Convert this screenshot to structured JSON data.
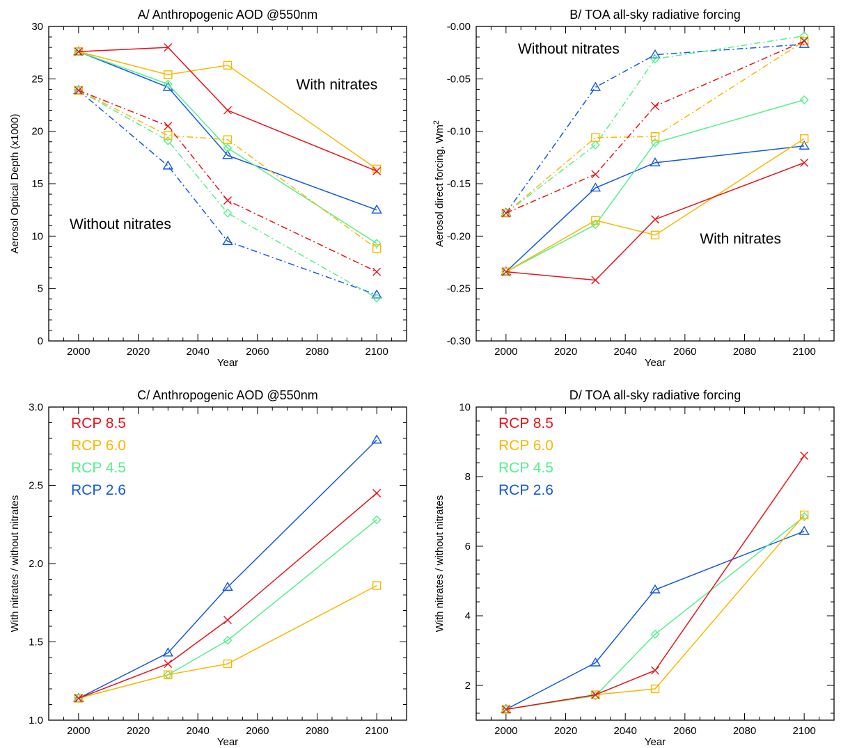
{
  "colors": {
    "RCP 8.5": "#e8121a",
    "RCP 6.0": "#f8b800",
    "RCP 4.5": "#54f08c",
    "RCP 2.6": "#1458e0"
  },
  "chart_data": [
    {
      "id": "A",
      "type": "line",
      "title": "A/ Anthropogenic AOD @550nm",
      "xlabel": "Year",
      "ylabel": "Aerosol Optical Depth (x1000)",
      "xlim": [
        1990,
        2110
      ],
      "ylim": [
        0,
        30
      ],
      "xticks": [
        2000,
        2020,
        2040,
        2060,
        2080,
        2100
      ],
      "xtick_labels": [
        "2000",
        "2020",
        "2040",
        "2060",
        "2080",
        "2100"
      ],
      "yticks": [
        0,
        5,
        10,
        15,
        20,
        25,
        30
      ],
      "ytick_labels": [
        "0",
        "5",
        "10",
        "15",
        "20",
        "25",
        "30"
      ],
      "x": [
        2000,
        2030,
        2050,
        2100
      ],
      "annotations": [
        {
          "text": "With nitrates",
          "x": 2073,
          "y": 24
        },
        {
          "text": "Without nitrates",
          "x": 1997,
          "y": 10.7
        }
      ],
      "series": [
        {
          "name": "RCP 2.6",
          "variant": "with nitrates",
          "values": [
            27.6,
            24.2,
            17.7,
            12.5
          ]
        },
        {
          "name": "RCP 4.5",
          "variant": "with nitrates",
          "values": [
            27.6,
            24.5,
            18.4,
            9.3
          ]
        },
        {
          "name": "RCP 6.0",
          "variant": "with nitrates",
          "values": [
            27.6,
            25.4,
            26.3,
            16.4
          ]
        },
        {
          "name": "RCP 8.5",
          "variant": "with nitrates",
          "values": [
            27.6,
            28.0,
            22.0,
            16.2
          ]
        },
        {
          "name": "RCP 2.6",
          "variant": "without nitrates",
          "values": [
            23.9,
            16.7,
            9.5,
            4.4
          ]
        },
        {
          "name": "RCP 4.5",
          "variant": "without nitrates",
          "values": [
            23.9,
            19.1,
            12.2,
            4.1
          ]
        },
        {
          "name": "RCP 6.0",
          "variant": "without nitrates",
          "values": [
            23.9,
            19.6,
            19.2,
            8.8
          ]
        },
        {
          "name": "RCP 8.5",
          "variant": "without nitrates",
          "values": [
            23.9,
            20.5,
            13.4,
            6.6
          ]
        }
      ]
    },
    {
      "id": "B",
      "type": "line",
      "title": "B/ TOA all-sky radiative forcing",
      "xlabel": "Year",
      "ylabel": "Aerosol direct forcing, Wm",
      "ylabel_sup": "2",
      "xlim": [
        1990,
        2110
      ],
      "ylim": [
        -0.3,
        0.0
      ],
      "xticks": [
        2000,
        2020,
        2040,
        2060,
        2080,
        2100
      ],
      "xtick_labels": [
        "2000",
        "2020",
        "2040",
        "2060",
        "2080",
        "2100"
      ],
      "yticks": [
        -0.3,
        -0.25,
        -0.2,
        -0.15,
        -0.1,
        -0.05,
        0.0
      ],
      "ytick_labels": [
        "-0.30",
        "-0.25",
        "-0.20",
        "-0.15",
        "-0.10",
        "-0.05",
        "-0.00"
      ],
      "x": [
        2000,
        2030,
        2050,
        2100
      ],
      "annotations": [
        {
          "text": "Without nitrates",
          "x": 2004,
          "y": -0.026
        },
        {
          "text": "With nitrates",
          "x": 2065,
          "y": -0.207
        }
      ],
      "series": [
        {
          "name": "RCP 2.6",
          "variant": "with nitrates",
          "values": [
            -0.234,
            -0.154,
            -0.13,
            -0.114
          ]
        },
        {
          "name": "RCP 4.5",
          "variant": "with nitrates",
          "values": [
            -0.234,
            -0.189,
            -0.111,
            -0.07
          ]
        },
        {
          "name": "RCP 6.0",
          "variant": "with nitrates",
          "values": [
            -0.234,
            -0.185,
            -0.199,
            -0.107
          ]
        },
        {
          "name": "RCP 8.5",
          "variant": "with nitrates",
          "values": [
            -0.234,
            -0.242,
            -0.184,
            -0.13
          ]
        },
        {
          "name": "RCP 2.6",
          "variant": "without nitrates",
          "values": [
            -0.178,
            -0.058,
            -0.027,
            -0.017
          ]
        },
        {
          "name": "RCP 4.5",
          "variant": "without nitrates",
          "values": [
            -0.178,
            -0.113,
            -0.031,
            -0.009
          ]
        },
        {
          "name": "RCP 6.0",
          "variant": "without nitrates",
          "values": [
            -0.178,
            -0.106,
            -0.105,
            -0.014
          ]
        },
        {
          "name": "RCP 8.5",
          "variant": "without nitrates",
          "values": [
            -0.178,
            -0.141,
            -0.076,
            -0.014
          ]
        }
      ]
    },
    {
      "id": "C",
      "type": "line",
      "title": "C/ Anthropogenic AOD @550nm",
      "xlabel": "Year",
      "ylabel": "With nitrates / without nitrates",
      "xlim": [
        1990,
        2110
      ],
      "ylim": [
        1.0,
        3.0
      ],
      "xticks": [
        2000,
        2020,
        2040,
        2060,
        2080,
        2100
      ],
      "xtick_labels": [
        "2000",
        "2020",
        "2040",
        "2060",
        "2080",
        "2100"
      ],
      "yticks": [
        1.0,
        1.5,
        2.0,
        2.5,
        3.0
      ],
      "ytick_labels": [
        "1.0",
        "1.5",
        "2.0",
        "2.5",
        "3.0"
      ],
      "x": [
        2000,
        2030,
        2050,
        2100
      ],
      "legend": [
        "RCP 8.5",
        "RCP 6.0",
        "RCP 4.5",
        "RCP 2.6"
      ],
      "legend_position": "top-left",
      "series": [
        {
          "name": "RCP 2.6",
          "values": [
            1.14,
            1.43,
            1.85,
            2.79
          ]
        },
        {
          "name": "RCP 4.5",
          "values": [
            1.14,
            1.29,
            1.51,
            2.28
          ]
        },
        {
          "name": "RCP 6.0",
          "values": [
            1.14,
            1.29,
            1.36,
            1.86
          ]
        },
        {
          "name": "RCP 8.5",
          "values": [
            1.14,
            1.36,
            1.64,
            2.45
          ]
        }
      ]
    },
    {
      "id": "D",
      "type": "line",
      "title": "D/ TOA all-sky radiative forcing",
      "xlabel": "Year",
      "ylabel": "With nitrates / without nitrates",
      "xlim": [
        1990,
        2110
      ],
      "ylim": [
        1.0,
        10.0
      ],
      "xticks": [
        2000,
        2020,
        2040,
        2060,
        2080,
        2100
      ],
      "xtick_labels": [
        "2000",
        "2020",
        "2040",
        "2060",
        "2080",
        "2100"
      ],
      "yticks": [
        2,
        4,
        6,
        8,
        10
      ],
      "ytick_labels": [
        "2",
        "4",
        "6",
        "8",
        "10"
      ],
      "x": [
        2000,
        2030,
        2050,
        2100
      ],
      "legend": [
        "RCP 8.5",
        "RCP 6.0",
        "RCP 4.5",
        "RCP 2.6"
      ],
      "legend_position": "top-left",
      "series": [
        {
          "name": "RCP 2.6",
          "values": [
            1.31,
            2.65,
            4.75,
            6.43
          ]
        },
        {
          "name": "RCP 4.5",
          "values": [
            1.31,
            1.7,
            3.47,
            6.85
          ]
        },
        {
          "name": "RCP 6.0",
          "values": [
            1.31,
            1.73,
            1.9,
            6.9
          ]
        },
        {
          "name": "RCP 8.5",
          "values": [
            1.31,
            1.73,
            2.43,
            8.6
          ]
        }
      ]
    }
  ]
}
